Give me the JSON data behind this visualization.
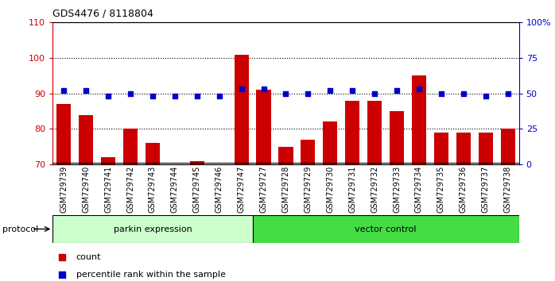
{
  "title": "GDS4476 / 8118804",
  "samples": [
    "GSM729739",
    "GSM729740",
    "GSM729741",
    "GSM729742",
    "GSM729743",
    "GSM729744",
    "GSM729745",
    "GSM729746",
    "GSM729747",
    "GSM729727",
    "GSM729728",
    "GSM729729",
    "GSM729730",
    "GSM729731",
    "GSM729732",
    "GSM729733",
    "GSM729734",
    "GSM729735",
    "GSM729736",
    "GSM729737",
    "GSM729738"
  ],
  "count_values": [
    87,
    84,
    72,
    80,
    76,
    70,
    71,
    70,
    101,
    91,
    75,
    77,
    82,
    88,
    88,
    85,
    95,
    79,
    79,
    79,
    80
  ],
  "percentile_values": [
    52,
    52,
    48,
    50,
    48,
    48,
    48,
    48,
    53,
    53,
    50,
    50,
    52,
    52,
    50,
    52,
    53,
    50,
    50,
    48,
    50
  ],
  "parkin_count": 9,
  "vector_count": 12,
  "ylim_left": [
    70,
    110
  ],
  "ylim_right": [
    0,
    100
  ],
  "yticks_left": [
    70,
    80,
    90,
    100,
    110
  ],
  "yticks_right": [
    0,
    25,
    50,
    75,
    100
  ],
  "ytick_right_labels": [
    "0",
    "25",
    "50",
    "75",
    "100%"
  ],
  "bar_color": "#cc0000",
  "dot_color": "#0000cc",
  "parkin_bg": "#ccffcc",
  "vector_bg": "#44dd44",
  "protocol_label": "protocol",
  "parkin_label": "parkin expression",
  "vector_label": "vector control",
  "legend_bar_label": "count",
  "legend_dot_label": "percentile rank within the sample",
  "axis_color_left": "#cc0000",
  "axis_color_right": "#0000cc",
  "xtick_bg": "#d0d0d0"
}
